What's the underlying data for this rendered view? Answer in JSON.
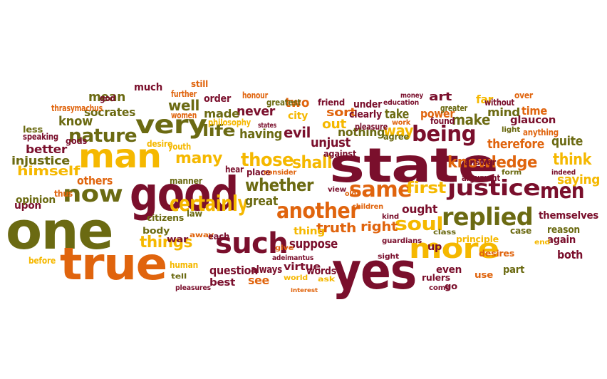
{
  "palette": {
    "dark_red": "#7a0f2c",
    "olive": "#6b6a12",
    "orange": "#e0640d",
    "yellow": "#f5b800",
    "brown": "#8f4b0a",
    "background": "#ffffff"
  },
  "words": [
    {
      "text": "state",
      "color": "#7a0f2c"
    },
    {
      "text": "one",
      "color": "#6b6a12"
    },
    {
      "text": "yes",
      "color": "#7a0f2c"
    },
    {
      "text": "good",
      "color": "#7a0f2c"
    },
    {
      "text": "true",
      "color": "#e0640d"
    },
    {
      "text": "man",
      "color": "#f5b800"
    },
    {
      "text": "such",
      "color": "#7a0f2c"
    },
    {
      "text": "more",
      "color": "#f5b800"
    },
    {
      "text": "replied",
      "color": "#6b6a12"
    },
    {
      "text": "very",
      "color": "#6b6a12"
    },
    {
      "text": "now",
      "color": "#6b6a12"
    },
    {
      "text": "another",
      "color": "#e0640d"
    },
    {
      "text": "certainly",
      "color": "#f5b800"
    },
    {
      "text": "justice",
      "color": "#7a0f2c"
    },
    {
      "text": "same",
      "color": "#e0640d"
    },
    {
      "text": "men",
      "color": "#7a0f2c"
    },
    {
      "text": "being",
      "color": "#7a0f2c"
    },
    {
      "text": "soul",
      "color": "#f5b800"
    },
    {
      "text": "knowledge",
      "color": "#e0640d"
    },
    {
      "text": "nature",
      "color": "#6b6a12"
    },
    {
      "text": "whether",
      "color": "#6b6a12"
    },
    {
      "text": "those",
      "color": "#f5b800"
    },
    {
      "text": "shall",
      "color": "#f5b800"
    },
    {
      "text": "things",
      "color": "#f5b800"
    },
    {
      "text": "many",
      "color": "#f5b800"
    },
    {
      "text": "life",
      "color": "#6b6a12"
    },
    {
      "text": "first",
      "color": "#f5b800"
    },
    {
      "text": "way",
      "color": "#f5b800"
    },
    {
      "text": "know",
      "color": "#6b6a12"
    },
    {
      "text": "mean",
      "color": "#6b6a12"
    },
    {
      "text": "socrates",
      "color": "#6b6a12"
    },
    {
      "text": "well",
      "color": "#6b6a12"
    },
    {
      "text": "himself",
      "color": "#f5b800"
    },
    {
      "text": "make",
      "color": "#6b6a12"
    },
    {
      "text": "think",
      "color": "#f5b800"
    },
    {
      "text": "quite",
      "color": "#6b6a12"
    },
    {
      "text": "saying",
      "color": "#f5b800"
    },
    {
      "text": "truth",
      "color": "#e0640d"
    },
    {
      "text": "right",
      "color": "#e0640d"
    },
    {
      "text": "great",
      "color": "#6b6a12"
    },
    {
      "text": "evil",
      "color": "#7a0f2c"
    },
    {
      "text": "unjust",
      "color": "#7a0f2c"
    },
    {
      "text": "having",
      "color": "#6b6a12"
    },
    {
      "text": "suppose",
      "color": "#7a0f2c"
    },
    {
      "text": "up",
      "color": "#7a0f2c"
    },
    {
      "text": "question",
      "color": "#7a0f2c"
    },
    {
      "text": "see",
      "color": "#e0640d"
    },
    {
      "text": "two",
      "color": "#e0640d"
    },
    {
      "text": "out",
      "color": "#f5b800"
    },
    {
      "text": "never",
      "color": "#7a0f2c"
    },
    {
      "text": "made",
      "color": "#6b6a12"
    },
    {
      "text": "sort",
      "color": "#e0640d"
    },
    {
      "text": "nothing",
      "color": "#6b6a12"
    },
    {
      "text": "take",
      "color": "#6b6a12"
    },
    {
      "text": "therefore",
      "color": "#e0640d"
    },
    {
      "text": "time",
      "color": "#e0640d"
    },
    {
      "text": "mind",
      "color": "#6b6a12"
    },
    {
      "text": "far",
      "color": "#f5b800"
    },
    {
      "text": "better",
      "color": "#7a0f2c"
    },
    {
      "text": "injustice",
      "color": "#6b6a12"
    },
    {
      "text": "others",
      "color": "#e0640d"
    },
    {
      "text": "upon",
      "color": "#7a0f2c"
    },
    {
      "text": "opinion",
      "color": "#6b6a12"
    },
    {
      "text": "both",
      "color": "#7a0f2c"
    },
    {
      "text": "again",
      "color": "#7a0f2c"
    },
    {
      "text": "reason",
      "color": "#6b6a12"
    },
    {
      "text": "themselves",
      "color": "#7a0f2c"
    },
    {
      "text": "ought",
      "color": "#7a0f2c"
    },
    {
      "text": "thing",
      "color": "#f5b800"
    },
    {
      "text": "always",
      "color": "#7a0f2c"
    },
    {
      "text": "best",
      "color": "#7a0f2c"
    },
    {
      "text": "even",
      "color": "#7a0f2c"
    },
    {
      "text": "part",
      "color": "#6b6a12"
    },
    {
      "text": "use",
      "color": "#e0640d"
    },
    {
      "text": "glaucon",
      "color": "#7a0f2c"
    },
    {
      "text": "art",
      "color": "#7a0f2c"
    },
    {
      "text": "power",
      "color": "#e0640d"
    },
    {
      "text": "city",
      "color": "#f5b800"
    },
    {
      "text": "place",
      "color": "#7a0f2c"
    },
    {
      "text": "much",
      "color": "#7a0f2c"
    },
    {
      "text": "still",
      "color": "#e0640d"
    },
    {
      "text": "thrasymachus",
      "color": "#e0640d"
    },
    {
      "text": "god",
      "color": "#7a0f2c"
    },
    {
      "text": "less",
      "color": "#6b6a12"
    },
    {
      "text": "speaking",
      "color": "#7a0f2c"
    },
    {
      "text": "gods",
      "color": "#7a0f2c"
    },
    {
      "text": "order",
      "color": "#7a0f2c"
    },
    {
      "text": "further",
      "color": "#e0640d"
    },
    {
      "text": "honour",
      "color": "#e0640d"
    },
    {
      "text": "greatest",
      "color": "#6b6a12"
    },
    {
      "text": "philosophy",
      "color": "#f5b800"
    },
    {
      "text": "women",
      "color": "#e0640d"
    },
    {
      "text": "youth",
      "color": "#f5b800"
    },
    {
      "text": "desire",
      "color": "#f5b800"
    },
    {
      "text": "states",
      "color": "#7a0f2c"
    },
    {
      "text": "friend",
      "color": "#7a0f2c"
    },
    {
      "text": "under",
      "color": "#7a0f2c"
    },
    {
      "text": "education",
      "color": "#7a0f2c"
    },
    {
      "text": "money",
      "color": "#7a0f2c"
    },
    {
      "text": "clearly",
      "color": "#7a0f2c"
    },
    {
      "text": "pleasure",
      "color": "#7a0f2c"
    },
    {
      "text": "agree",
      "color": "#6b6a12"
    },
    {
      "text": "found",
      "color": "#7a0f2c"
    },
    {
      "text": "greater",
      "color": "#6b6a12"
    },
    {
      "text": "without",
      "color": "#7a0f2c"
    },
    {
      "text": "over",
      "color": "#e0640d"
    },
    {
      "text": "light",
      "color": "#6b6a12"
    },
    {
      "text": "anything",
      "color": "#e0640d"
    },
    {
      "text": "work",
      "color": "#e0640d"
    },
    {
      "text": "against",
      "color": "#7a0f2c"
    },
    {
      "text": "hear",
      "color": "#7a0f2c"
    },
    {
      "text": "consider",
      "color": "#e0640d"
    },
    {
      "text": "manner",
      "color": "#6b6a12"
    },
    {
      "text": "answer",
      "color": "#7a0f2c"
    },
    {
      "text": "argument",
      "color": "#7a0f2c"
    },
    {
      "text": "form",
      "color": "#6b6a12"
    },
    {
      "text": "indeed",
      "color": "#7a0f2c"
    },
    {
      "text": "thus",
      "color": "#e0640d"
    },
    {
      "text": "citizens",
      "color": "#6b6a12"
    },
    {
      "text": "law",
      "color": "#6b6a12"
    },
    {
      "text": "children",
      "color": "#e0640d"
    },
    {
      "text": "old",
      "color": "#e0640d"
    },
    {
      "text": "kind",
      "color": "#7a0f2c"
    },
    {
      "text": "class",
      "color": "#6b6a12"
    },
    {
      "text": "principle",
      "color": "#f5b800"
    },
    {
      "text": "desires",
      "color": "#e0640d"
    },
    {
      "text": "case",
      "color": "#6b6a12"
    },
    {
      "text": "body",
      "color": "#6b6a12"
    },
    {
      "text": "war",
      "color": "#7a0f2c"
    },
    {
      "text": "away",
      "color": "#e0640d"
    },
    {
      "text": "each",
      "color": "#7a0f2c"
    },
    {
      "text": "give",
      "color": "#e0640d"
    },
    {
      "text": "sight",
      "color": "#7a0f2c"
    },
    {
      "text": "guardians",
      "color": "#7a0f2c"
    },
    {
      "text": "adeimantus",
      "color": "#7a0f2c"
    },
    {
      "text": "human",
      "color": "#f5b800"
    },
    {
      "text": "tell",
      "color": "#6b6a12"
    },
    {
      "text": "pleasures",
      "color": "#7a0f2c"
    },
    {
      "text": "before",
      "color": "#f5b800"
    },
    {
      "text": "virtue",
      "color": "#7a0f2c"
    },
    {
      "text": "words",
      "color": "#7a0f2c"
    },
    {
      "text": "world",
      "color": "#f5b800"
    },
    {
      "text": "ask",
      "color": "#f5b800"
    },
    {
      "text": "interest",
      "color": "#e0640d"
    },
    {
      "text": "rulers",
      "color": "#7a0f2c"
    },
    {
      "text": "come",
      "color": "#7a0f2c"
    },
    {
      "text": "go",
      "color": "#7a0f2c"
    },
    {
      "text": "end",
      "color": "#f5b800"
    },
    {
      "text": "view",
      "color": "#7a0f2c"
    }
  ]
}
